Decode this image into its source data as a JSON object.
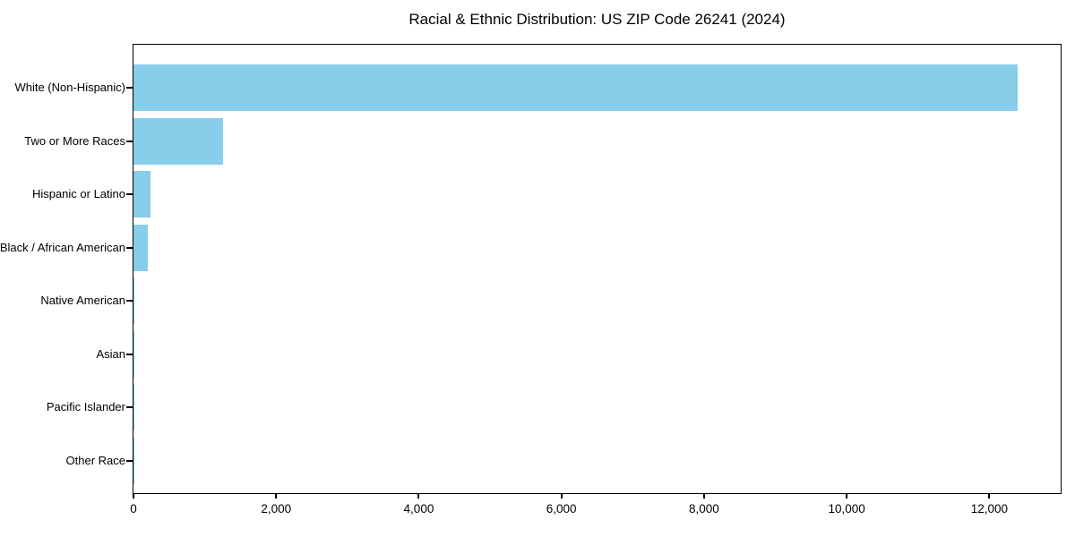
{
  "chart_data": {
    "type": "bar",
    "orientation": "horizontal",
    "title": "Racial & Ethnic Distribution: US ZIP Code 26241 (2024)",
    "categories": [
      "White (Non-Hispanic)",
      "Two or More Races",
      "Hispanic or Latino",
      "Black / African American",
      "Native American",
      "Asian",
      "Pacific Islander",
      "Other Race"
    ],
    "values": [
      12400,
      1250,
      235,
      200,
      15,
      10,
      5,
      5
    ],
    "xlabel": "",
    "ylabel": "",
    "xlim": [
      0,
      13000
    ],
    "xticks": [
      0,
      2000,
      4000,
      6000,
      8000,
      10000,
      12000
    ],
    "xtick_labels": [
      "0",
      "2,000",
      "4,000",
      "6,000",
      "8,000",
      "10,000",
      "12,000"
    ],
    "bar_color": "#87CEEB",
    "axis_color": "#000000",
    "text_color": "#000000",
    "grid": false,
    "legend": null
  }
}
